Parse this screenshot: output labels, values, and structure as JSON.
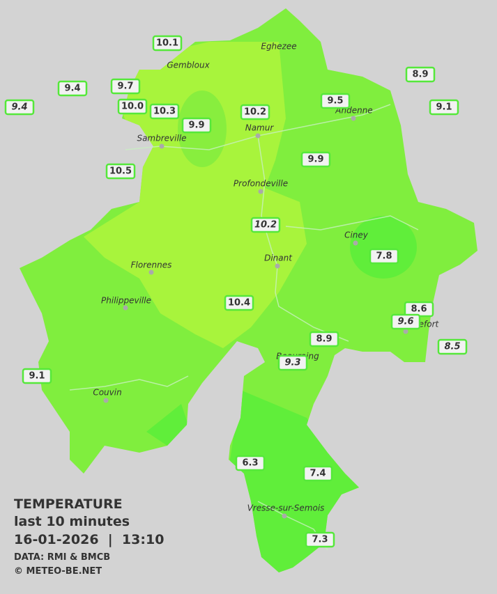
{
  "header": {
    "title": "TEMPERATURE",
    "subtitle": "last 10 minutes",
    "timestamp": "16-01-2026  |  13:10",
    "source": "DATA: RMI & BMCB",
    "copyright": "© METEO-BE.NET"
  },
  "cities": [
    "Eghezee",
    "Gembloux",
    "Andenne",
    "Namur",
    "Sambreville",
    "Profondeville",
    "Ciney",
    "Florennes",
    "Dinant",
    "Philippeville",
    "Rochefort",
    "Beauraing",
    "Couvin",
    "Vresse-sur-Semois"
  ],
  "stations": [
    "10.1",
    "8.9",
    "9.4",
    "9.7",
    "9.5",
    "9.4",
    "10.0",
    "10.3",
    "10.2",
    "9.1",
    "9.9",
    "9.9",
    "10.5",
    "10.2",
    "7.8",
    "10.4",
    "8.6",
    "9.6",
    "8.5",
    "8.9",
    "9.3",
    "9.1",
    "6.3",
    "7.4",
    "7.3"
  ]
}
